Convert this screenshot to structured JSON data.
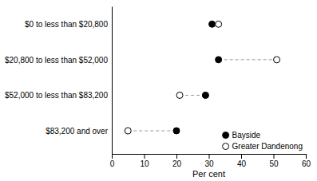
{
  "chart_data": {
    "type": "dumbbell",
    "orientation": "horizontal",
    "xlabel": "Per cent",
    "categories": [
      "$0 to less than $20,800",
      "$20,800 to less than $52,000",
      "$52,000 to less than $83,200",
      "$83,200 and over"
    ],
    "series": [
      {
        "name": "Bayside",
        "color": "#000000",
        "marker": "circle",
        "values": [
          31,
          33,
          29,
          20
        ]
      },
      {
        "name": "Greater Dandenong",
        "color": "#000000",
        "marker": "circle-open",
        "values": [
          33,
          51,
          21,
          5
        ]
      }
    ],
    "xlim": [
      0,
      60
    ],
    "xticks": [
      0,
      10,
      20,
      30,
      40,
      50,
      60
    ],
    "grid": false,
    "legend": "lower right"
  }
}
